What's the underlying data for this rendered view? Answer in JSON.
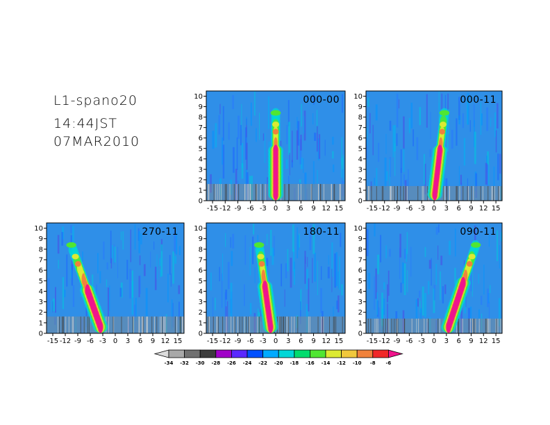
{
  "header": {
    "line1": "L1-spano20",
    "line2": "14:44JST",
    "line3": "07MAR2010"
  },
  "chart_data": {
    "type": "heatmap",
    "xlim": [
      -16.5,
      16.5
    ],
    "ylim": [
      0,
      10.5
    ],
    "x_ticks": [
      -15,
      -12,
      -9,
      -6,
      -3,
      0,
      3,
      6,
      9,
      12,
      15
    ],
    "x_tick_labels": [
      "-15",
      "-12",
      "-9",
      "-6",
      "-3",
      "0",
      "3",
      "6",
      "9",
      "12",
      "15"
    ],
    "y_ticks": [
      0,
      1,
      2,
      3,
      4,
      5,
      6,
      7,
      8,
      9,
      10
    ],
    "y_tick_labels": [
      "0",
      "1",
      "2",
      "3",
      "4",
      "5",
      "6",
      "7",
      "8",
      "9",
      "10"
    ],
    "panels": [
      {
        "label": "000-00",
        "tilt": 0.0,
        "x0": 0.0,
        "core_top": 4.8
      },
      {
        "label": "000-11",
        "tilt": 0.3,
        "x0": 0.0,
        "core_top": 4.9
      },
      {
        "label": "270-11",
        "tilt": -0.9,
        "x0": -3.0,
        "core_top": 4.4
      },
      {
        "label": "180-11",
        "tilt": -0.35,
        "x0": -1.0,
        "core_top": 4.6
      },
      {
        "label": "090-11",
        "tilt": 0.85,
        "x0": 3.0,
        "core_top": 4.8
      }
    ],
    "colorbar": {
      "levels": [
        "-34",
        "-32",
        "-30",
        "-28",
        "-26",
        "-24",
        "-22",
        "-20",
        "-18",
        "-16",
        "-14",
        "-12",
        "-10",
        "-8",
        "-6"
      ],
      "colors": [
        "#dcdcdc",
        "#a8a8a8",
        "#707070",
        "#3c3c3c",
        "#a000c8",
        "#5a28ff",
        "#0050ff",
        "#00aaff",
        "#00d7d7",
        "#00dc6e",
        "#50e632",
        "#dcea32",
        "#f0c83c",
        "#f0823c",
        "#f02828",
        "#f0148c"
      ]
    }
  }
}
